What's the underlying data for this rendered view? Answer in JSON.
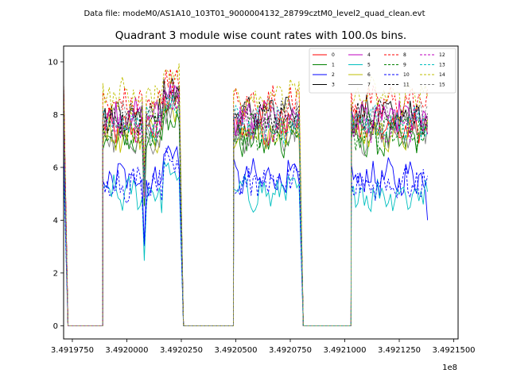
{
  "figure": {
    "suptitle": "Data file: modeM0/AS1A10_103T01_9000004132_28799cztM0_level2_quad_clean.evt"
  },
  "chart_data": {
    "type": "line",
    "title": "Quadrant 3 module wise count rates with 100.0s bins.",
    "xlabel": "",
    "ylabel": "",
    "x_offset_label": "1e8",
    "xlim": [
      349197100,
      349215200
    ],
    "ylim": [
      -0.5,
      10.6
    ],
    "x_ticks": [
      349197500,
      349200000,
      349202500,
      349205000,
      349207500,
      349210000,
      349212500,
      349215000
    ],
    "x_tick_labels": [
      "3.4919750",
      "3.4920000",
      "3.4920250",
      "3.4920500",
      "3.4920750",
      "3.4921000",
      "3.4921250",
      "3.4921500"
    ],
    "y_ticks": [
      0,
      2,
      4,
      6,
      8,
      10
    ],
    "y_tick_labels": [
      "0",
      "2",
      "4",
      "6",
      "8",
      "10"
    ],
    "grid": false,
    "legend_position": "top-right",
    "legend_columns": 4,
    "segments": [
      {
        "start": 349198900,
        "end": 349202400,
        "lead_zero_from": 349197300,
        "trail_zero_to": 349204900
      },
      {
        "start": 349204900,
        "end": 349207900
      },
      {
        "start": 349210300,
        "end": 349213800
      }
    ],
    "first_point": {
      "x": 349197100
    },
    "series": [
      {
        "name": "0",
        "color": "#ff0000",
        "dash": false,
        "mean": 7.5
      },
      {
        "name": "1",
        "color": "#008000",
        "dash": false,
        "mean": 7.0
      },
      {
        "name": "2",
        "color": "#0000ff",
        "dash": false,
        "mean": 5.6
      },
      {
        "name": "3",
        "color": "#000000",
        "dash": false,
        "mean": 8.0
      },
      {
        "name": "4",
        "color": "#bf00bf",
        "dash": false,
        "mean": 7.9
      },
      {
        "name": "5",
        "color": "#00bfbf",
        "dash": false,
        "mean": 5.0
      },
      {
        "name": "6",
        "color": "#bfbf00",
        "dash": false,
        "mean": 7.3
      },
      {
        "name": "7",
        "color": "#808080",
        "dash": false,
        "mean": 7.2
      },
      {
        "name": "8",
        "color": "#ff0000",
        "dash": true,
        "mean": 8.4
      },
      {
        "name": "9",
        "color": "#008000",
        "dash": true,
        "mean": 7.4
      },
      {
        "name": "10",
        "color": "#0000ff",
        "dash": true,
        "mean": 5.4
      },
      {
        "name": "11",
        "color": "#000000",
        "dash": true,
        "mean": 7.8
      },
      {
        "name": "12",
        "color": "#bf00bf",
        "dash": true,
        "mean": 7.6
      },
      {
        "name": "13",
        "color": "#00bfbf",
        "dash": true,
        "mean": 7.6
      },
      {
        "name": "14",
        "color": "#bfbf00",
        "dash": true,
        "mean": 8.7
      },
      {
        "name": "15",
        "color": "#808080",
        "dash": true,
        "mean": 7.9
      }
    ]
  }
}
